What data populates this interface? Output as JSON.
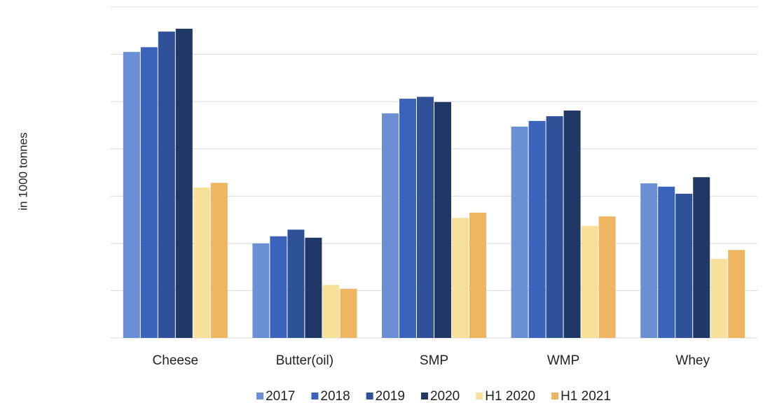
{
  "chart_data": {
    "type": "bar",
    "y_label": "in 1000 tonnes",
    "categories": [
      "Cheese",
      "Butter(oil)",
      "SMP",
      "WMP",
      "Whey"
    ],
    "series": [
      {
        "name": "2017",
        "color": "#6a8fd4",
        "values": [
          6.05,
          2.0,
          4.75,
          4.47,
          3.27
        ]
      },
      {
        "name": "2018",
        "color": "#3a64bb",
        "values": [
          6.15,
          2.15,
          5.06,
          4.59,
          3.2
        ]
      },
      {
        "name": "2019",
        "color": "#2e5198",
        "values": [
          6.48,
          2.29,
          5.1,
          4.69,
          3.05
        ]
      },
      {
        "name": "2020",
        "color": "#1f3866",
        "values": [
          6.54,
          2.12,
          4.99,
          4.81,
          3.4
        ]
      },
      {
        "name": "H1 2020",
        "color": "#f7e09a",
        "values": [
          3.18,
          1.12,
          2.54,
          2.37,
          1.67
        ]
      },
      {
        "name": "H1 2021",
        "color": "#efb560",
        "values": [
          3.28,
          1.04,
          2.65,
          2.57,
          1.86
        ]
      }
    ],
    "ylim": [
      0,
      7
    ],
    "yticks": [
      0,
      1,
      2,
      3,
      4,
      5,
      6,
      7
    ],
    "grid": true,
    "legend": "bottom"
  }
}
